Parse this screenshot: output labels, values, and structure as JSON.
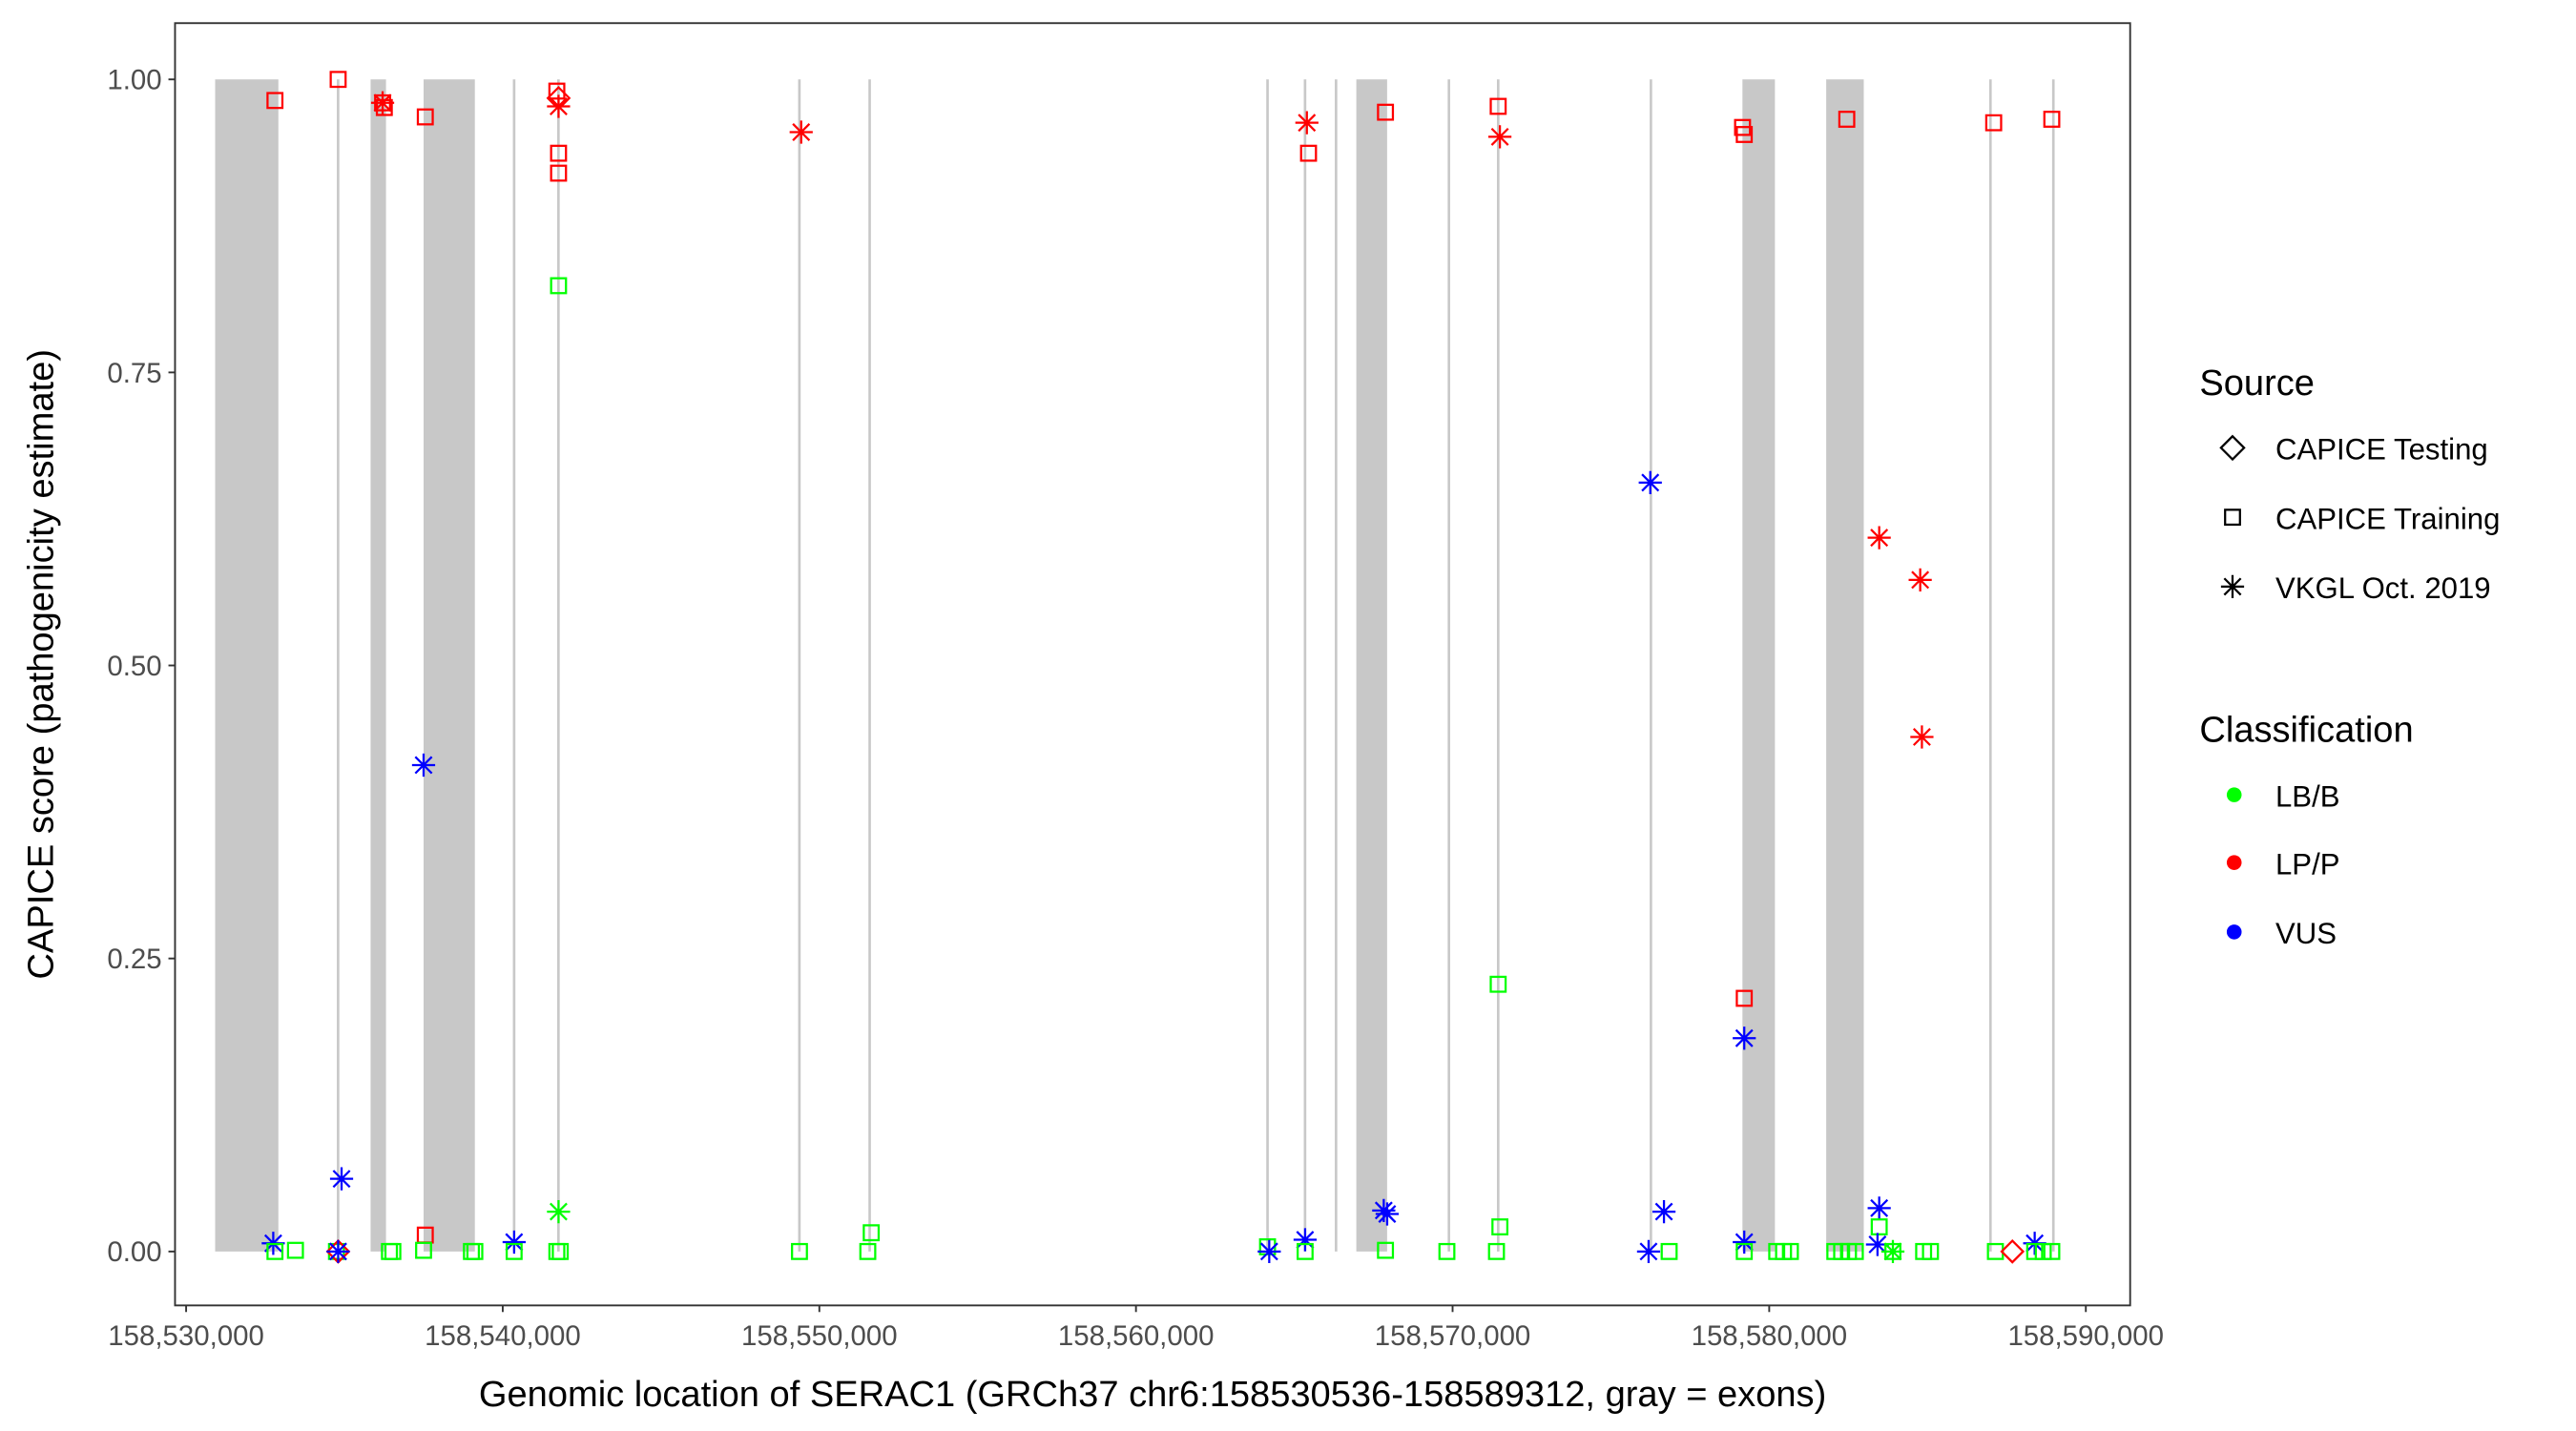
{
  "chart_data": {
    "type": "scatter",
    "xlabel": "Genomic location of SERAC1 (GRCh37 chr6:158530536-158589312, gray = exons)",
    "ylabel": "CAPICE score (pathogenicity estimate)",
    "xlim": [
      158529650,
      158591400
    ],
    "ylim": [
      -0.046,
      1.048
    ],
    "xticks": [
      158530000,
      158540000,
      158550000,
      158560000,
      158570000,
      158580000,
      158590000
    ],
    "xtick_labels": [
      "158,530,000",
      "158,540,000",
      "158,550,000",
      "158,560,000",
      "158,570,000",
      "158,580,000",
      "158,590,000"
    ],
    "yticks": [
      0,
      0.25,
      0.5,
      0.75,
      1.0
    ],
    "ytick_labels": [
      "0.00",
      "0.25",
      "0.50",
      "0.75",
      "1.00"
    ],
    "grid": false,
    "exons": [
      [
        158530917,
        158532914
      ],
      [
        158534760,
        158534840
      ],
      [
        158535827,
        158536313
      ],
      [
        158537500,
        158539119
      ],
      [
        158540320,
        158540400
      ],
      [
        158541720,
        158541800
      ],
      [
        158549330,
        158549410
      ],
      [
        158551550,
        158551610
      ],
      [
        158564115,
        158564195
      ],
      [
        158565300,
        158565380
      ],
      [
        158566280,
        158566340
      ],
      [
        158566960,
        158567932
      ],
      [
        158569845,
        158569900
      ],
      [
        158571400,
        158571480
      ],
      [
        158576225,
        158576255
      ],
      [
        158579155,
        158580180
      ],
      [
        158581800,
        158582986
      ],
      [
        158586950,
        158587010
      ],
      [
        158588935,
        158589015
      ]
    ],
    "legend": {
      "position": "right",
      "source_title": "Source",
      "source_items": [
        {
          "key": "testing",
          "label": "CAPICE Testing",
          "shape": "diamond"
        },
        {
          "key": "training",
          "label": "CAPICE Training",
          "shape": "square"
        },
        {
          "key": "vkgl",
          "label": "VKGL Oct. 2019",
          "shape": "asterisk"
        }
      ],
      "class_title": "Classification",
      "class_items": [
        {
          "key": "LB/B",
          "label": "LB/B",
          "color": "#00ff00"
        },
        {
          "key": "LP/P",
          "label": "LP/P",
          "color": "#ff0000"
        },
        {
          "key": "VUS",
          "label": "VUS",
          "color": "#0000ff"
        }
      ]
    },
    "points_format": [
      "position",
      "score",
      "source",
      "classification"
    ],
    "points": [
      [
        158532806,
        0.982,
        "training",
        "LP/P"
      ],
      [
        158534802,
        1.0,
        "training",
        "LP/P"
      ],
      [
        158536206,
        0.98,
        "training",
        "LP/P"
      ],
      [
        158536260,
        0.976,
        "training",
        "LP/P"
      ],
      [
        158536206,
        0.98,
        "vkgl",
        "LP/P"
      ],
      [
        158537554,
        0.968,
        "training",
        "LP/P"
      ],
      [
        158541709,
        0.99,
        "training",
        "LP/P"
      ],
      [
        158541763,
        0.984,
        "testing",
        "LP/P"
      ],
      [
        158541763,
        0.977,
        "vkgl",
        "LP/P"
      ],
      [
        158541763,
        0.937,
        "training",
        "LP/P"
      ],
      [
        158541763,
        0.92,
        "training",
        "LP/P"
      ],
      [
        158541763,
        0.824,
        "training",
        "LB/B"
      ],
      [
        158549426,
        0.955,
        "vkgl",
        "LP/P"
      ],
      [
        158565398,
        0.963,
        "vkgl",
        "LP/P"
      ],
      [
        158565450,
        0.937,
        "training",
        "LP/P"
      ],
      [
        158567880,
        0.972,
        "training",
        "LP/P"
      ],
      [
        158571440,
        0.977,
        "training",
        "LP/P"
      ],
      [
        158571494,
        0.951,
        "vkgl",
        "LP/P"
      ],
      [
        158579158,
        0.959,
        "training",
        "LP/P"
      ],
      [
        158579212,
        0.953,
        "training",
        "LP/P"
      ],
      [
        158582450,
        0.966,
        "training",
        "LP/P"
      ],
      [
        158587090,
        0.963,
        "training",
        "LP/P"
      ],
      [
        158588925,
        0.966,
        "training",
        "LP/P"
      ],
      [
        158576244,
        0.656,
        "vkgl",
        "VUS"
      ],
      [
        158583474,
        0.609,
        "vkgl",
        "LP/P"
      ],
      [
        158584769,
        0.573,
        "vkgl",
        "LP/P"
      ],
      [
        158584823,
        0.439,
        "vkgl",
        "LP/P"
      ],
      [
        158537500,
        0.415,
        "vkgl",
        "VUS"
      ],
      [
        158579212,
        0.216,
        "training",
        "LP/P"
      ],
      [
        158579212,
        0.182,
        "vkgl",
        "VUS"
      ],
      [
        158571440,
        0.228,
        "training",
        "LB/B"
      ],
      [
        158534910,
        0.062,
        "vkgl",
        "VUS"
      ],
      [
        158541763,
        0.034,
        "vkgl",
        "LB/B"
      ],
      [
        158567826,
        0.035,
        "vkgl",
        "VUS"
      ],
      [
        158567934,
        0.032,
        "vkgl",
        "VUS"
      ],
      [
        158576676,
        0.034,
        "vkgl",
        "VUS"
      ],
      [
        158583474,
        0.037,
        "vkgl",
        "VUS"
      ],
      [
        158583474,
        0.021,
        "training",
        "LB/B"
      ],
      [
        158571494,
        0.021,
        "training",
        "LB/B"
      ],
      [
        158551638,
        0.016,
        "training",
        "LB/B"
      ],
      [
        158537554,
        0.014,
        "training",
        "LP/P"
      ],
      [
        158532752,
        0.007,
        "vkgl",
        "VUS"
      ],
      [
        158532806,
        0.0,
        "training",
        "LB/B"
      ],
      [
        158533453,
        0.001,
        "training",
        "LB/B"
      ],
      [
        158534748,
        0.0,
        "training",
        "LB/B"
      ],
      [
        158534802,
        0.0,
        "testing",
        "LP/P"
      ],
      [
        158534802,
        0.0,
        "vkgl",
        "VUS"
      ],
      [
        158536422,
        0.0,
        "training",
        "LB/B"
      ],
      [
        158536530,
        0.0,
        "training",
        "LB/B"
      ],
      [
        158537500,
        0.001,
        "training",
        "LB/B"
      ],
      [
        158539011,
        0.0,
        "training",
        "LB/B"
      ],
      [
        158539119,
        0.0,
        "training",
        "LB/B"
      ],
      [
        158540360,
        0.008,
        "vkgl",
        "VUS"
      ],
      [
        158540360,
        0.0,
        "training",
        "LB/B"
      ],
      [
        158541709,
        0.0,
        "training",
        "LB/B"
      ],
      [
        158541817,
        0.0,
        "training",
        "LB/B"
      ],
      [
        158549372,
        0.0,
        "training",
        "LB/B"
      ],
      [
        158551530,
        0.0,
        "training",
        "LB/B"
      ],
      [
        158564155,
        0.004,
        "training",
        "LB/B"
      ],
      [
        158564209,
        0.0,
        "vkgl",
        "VUS"
      ],
      [
        158565342,
        0.01,
        "vkgl",
        "VUS"
      ],
      [
        158565342,
        0.0,
        "training",
        "LB/B"
      ],
      [
        158567880,
        0.001,
        "training",
        "LB/B"
      ],
      [
        158569820,
        0.0,
        "training",
        "LB/B"
      ],
      [
        158571386,
        0.0,
        "training",
        "LB/B"
      ],
      [
        158576190,
        0.0,
        "vkgl",
        "VUS"
      ],
      [
        158576840,
        0.0,
        "training",
        "LB/B"
      ],
      [
        158579212,
        0.008,
        "vkgl",
        "VUS"
      ],
      [
        158579212,
        0.0,
        "training",
        "LB/B"
      ],
      [
        158580237,
        0.0,
        "training",
        "LB/B"
      ],
      [
        158580453,
        0.0,
        "training",
        "LB/B"
      ],
      [
        158580669,
        0.0,
        "training",
        "LB/B"
      ],
      [
        158582072,
        0.0,
        "training",
        "LB/B"
      ],
      [
        158582288,
        0.0,
        "training",
        "LB/B"
      ],
      [
        158582504,
        0.0,
        "training",
        "LB/B"
      ],
      [
        158582720,
        0.0,
        "training",
        "LB/B"
      ],
      [
        158583420,
        0.006,
        "vkgl",
        "VUS"
      ],
      [
        158583906,
        0.0,
        "training",
        "LB/B"
      ],
      [
        158583906,
        0.0,
        "vkgl",
        "LB/B"
      ],
      [
        158584877,
        0.0,
        "training",
        "LB/B"
      ],
      [
        158585093,
        0.0,
        "training",
        "LB/B"
      ],
      [
        158587144,
        0.0,
        "training",
        "LB/B"
      ],
      [
        158587680,
        0.0,
        "testing",
        "LP/P"
      ],
      [
        158588385,
        0.007,
        "vkgl",
        "VUS"
      ],
      [
        158588385,
        0.0,
        "training",
        "LB/B"
      ],
      [
        158588655,
        0.0,
        "training",
        "LB/B"
      ],
      [
        158588925,
        0.0,
        "training",
        "LB/B"
      ]
    ]
  }
}
